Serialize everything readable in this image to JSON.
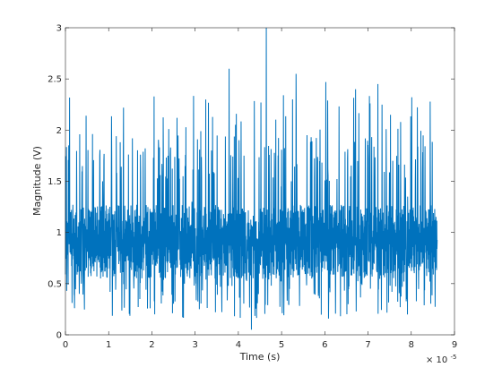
{
  "chart_data": {
    "type": "line",
    "xlabel": "Time (s)",
    "ylabel": "Magnitude (V)",
    "x_exponent_label": "× 10",
    "x_exponent": "-5",
    "xlim": [
      0,
      9
    ],
    "ylim": [
      0,
      3
    ],
    "x_ticks": [
      0,
      1,
      2,
      3,
      4,
      5,
      6,
      7,
      8,
      9
    ],
    "y_ticks": [
      0,
      0.5,
      1,
      1.5,
      2,
      2.5,
      3
    ],
    "y_tick_labels": [
      "0",
      "0.5",
      "1",
      "1.5",
      "2",
      "2.5",
      "3"
    ],
    "grid": false,
    "line_color": "#0072bd",
    "series": [
      {
        "x_range": [
          0,
          8.6
        ],
        "approx_samples": 1800,
        "typical_band": [
          0.55,
          1.27
        ],
        "sample_values": [
          0.59,
          1.27,
          0.62,
          1.21,
          0.71,
          1.5,
          0.42,
          1.05,
          0.95,
          1.92,
          0.35,
          1.2,
          0.2,
          1.55,
          0.8,
          2.12,
          0.5,
          1.3,
          0.25,
          0.9,
          1.58,
          0.41,
          2.6,
          0.6,
          1.75,
          0.05,
          1.0,
          3.0,
          0.7,
          1.45,
          0.3,
          2.55,
          0.85,
          1.6,
          0.38,
          2.47,
          0.65,
          1.2,
          0.3,
          2.4,
          1.0,
          0.45,
          2.45,
          0.6,
          1.7,
          0.27,
          1.35,
          0.88,
          1.58,
          0.52
        ]
      }
    ]
  }
}
